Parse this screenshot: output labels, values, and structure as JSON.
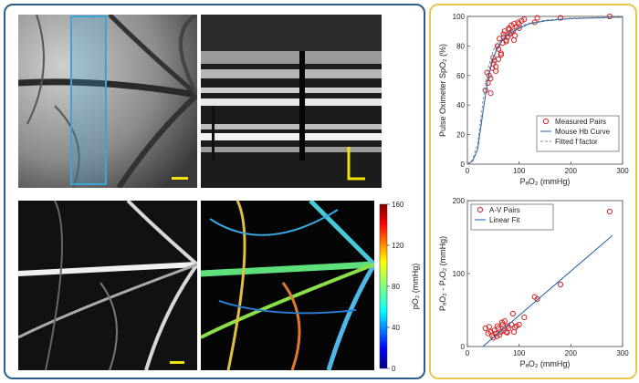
{
  "colors": {
    "left_border": "#2b5d8c",
    "right_border": "#e6c84a",
    "scale_bar": "#f2e20a",
    "roi_box": "#3aa6d8",
    "marker": "#d62728",
    "fit_line": "#1f5fa8",
    "dashed_line": "#888888"
  },
  "images": [
    {
      "id": "fundus",
      "description_icon": "retina-fundus-image"
    },
    {
      "id": "oct_bscan",
      "description_icon": "oct-cross-section-image"
    },
    {
      "id": "angiogram",
      "description_icon": "octa-vessel-image"
    },
    {
      "id": "po2_map",
      "description_icon": "po2-colormap-image"
    }
  ],
  "colorbar": {
    "label": "pO₂ (mmHg)",
    "ticks": [
      "160",
      "120",
      "80",
      "40",
      "0"
    ]
  },
  "chart_data": [
    {
      "type": "scatter",
      "ylabel": "Pulse Oximeter SpO₂ (%)",
      "xlabel": "PₐO₂ (mmHg)",
      "xlim": [
        0,
        300
      ],
      "ylim": [
        0,
        100
      ],
      "xticks": [
        "0",
        "100",
        "200",
        "300"
      ],
      "yticks": [
        "0",
        "20",
        "40",
        "60",
        "80",
        "100"
      ],
      "legend_position": "bottom-right",
      "series": [
        {
          "name": "Measured Pairs",
          "kind": "markers",
          "x": [
            35,
            40,
            42,
            45,
            48,
            50,
            52,
            55,
            58,
            60,
            62,
            65,
            68,
            70,
            72,
            75,
            78,
            80,
            82,
            85,
            88,
            90,
            92,
            95,
            98,
            100,
            105,
            110,
            130,
            135,
            180,
            275,
            45,
            55,
            65,
            75,
            85,
            38,
            50,
            60,
            70,
            80,
            90,
            100
          ],
          "y": [
            50,
            55,
            60,
            48,
            65,
            72,
            70,
            63,
            80,
            78,
            85,
            75,
            82,
            88,
            90,
            84,
            86,
            92,
            88,
            94,
            90,
            95,
            87,
            93,
            96,
            92,
            97,
            98,
            96,
            99,
            99,
            100,
            58,
            66,
            74,
            83,
            89,
            62,
            68,
            71,
            86,
            91,
            84,
            95
          ]
        },
        {
          "name": "Mouse Hb Curve",
          "kind": "line",
          "x": [
            0,
            10,
            20,
            30,
            40,
            50,
            60,
            70,
            80,
            100,
            120,
            150,
            200,
            250,
            300
          ],
          "y": [
            0,
            2,
            10,
            35,
            58,
            72,
            80,
            85,
            88,
            92,
            95,
            97,
            98.5,
            99,
            99.5
          ]
        },
        {
          "name": "Fitted f factor",
          "kind": "dashed",
          "x": [
            0,
            10,
            20,
            30,
            40,
            50,
            60,
            70,
            80,
            100,
            120,
            150,
            200,
            250,
            300
          ],
          "y": [
            0,
            3,
            14,
            42,
            65,
            77,
            83,
            87,
            90,
            93,
            95.5,
            97.5,
            98.8,
            99.2,
            99.6
          ]
        }
      ]
    },
    {
      "type": "scatter",
      "ylabel": "PₐO₂ - PᵥO₂ (mmHg)",
      "xlabel": "PₐO₂ (mmHg)",
      "xlim": [
        0,
        300
      ],
      "ylim": [
        0,
        200
      ],
      "xticks": [
        "0",
        "100",
        "200",
        "300"
      ],
      "yticks": [
        "0",
        "100",
        "200"
      ],
      "legend_position": "top-left",
      "series": [
        {
          "name": "A-V Pairs",
          "kind": "markers",
          "x": [
            35,
            40,
            45,
            48,
            50,
            52,
            55,
            58,
            60,
            62,
            65,
            68,
            70,
            72,
            75,
            78,
            80,
            85,
            88,
            90,
            95,
            100,
            110,
            130,
            135,
            180,
            275,
            42,
            57,
            67,
            77,
            92
          ],
          "y": [
            25,
            18,
            20,
            15,
            12,
            22,
            18,
            28,
            25,
            16,
            20,
            30,
            22,
            35,
            20,
            28,
            25,
            30,
            45,
            20,
            28,
            30,
            40,
            68,
            65,
            85,
            185,
            27,
            14,
            33,
            19,
            26
          ]
        },
        {
          "name": "Linear Fit",
          "kind": "line",
          "x": [
            30,
            280
          ],
          "y": [
            0,
            152
          ]
        }
      ]
    }
  ]
}
